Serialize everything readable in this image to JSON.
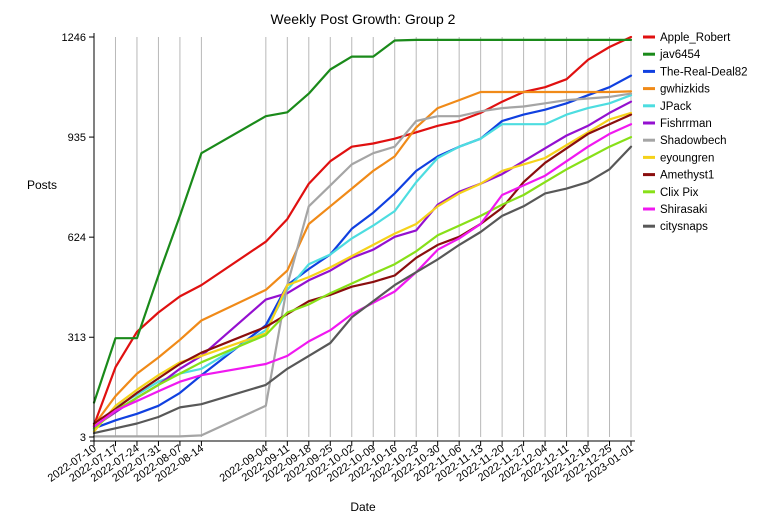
{
  "chart_data": {
    "type": "line",
    "title": "Weekly Post Growth: Group 2",
    "xlabel": "Date",
    "ylabel": "Posts",
    "ylim": [
      3,
      1246
    ],
    "yticks": [
      3,
      313,
      624,
      935,
      1246
    ],
    "grid": "vertical",
    "legend": "right",
    "x": [
      "2022-07-10",
      "2022-07-17",
      "2022-07-24",
      "2022-07-31",
      "2022-08-07",
      "2022-08-14",
      "2022-09-04",
      "2022-09-11",
      "2022-09-18",
      "2022-09-25",
      "2022-10-02",
      "2022-10-09",
      "2022-10-16",
      "2022-10-23",
      "2022-10-30",
      "2022-11-06",
      "2022-11-13",
      "2022-11-20",
      "2022-11-27",
      "2022-12-04",
      "2022-12-11",
      "2022-12-18",
      "2022-12-25",
      "2023-01-01"
    ],
    "series": [
      {
        "name": "Apple_Robert",
        "color": "#e01010",
        "values": [
          40,
          220,
          330,
          390,
          440,
          475,
          610,
          680,
          790,
          860,
          905,
          915,
          930,
          950,
          970,
          985,
          1010,
          1045,
          1075,
          1090,
          1115,
          1175,
          1215,
          1246
        ]
      },
      {
        "name": "jav6454",
        "color": "#1a8a1a",
        "values": [
          110,
          310,
          310,
          505,
          690,
          885,
          1000,
          1012,
          1070,
          1145,
          1185,
          1185,
          1235,
          1237,
          1237,
          1237,
          1237,
          1237,
          1237,
          1237,
          1237,
          1237,
          1237,
          1237
        ]
      },
      {
        "name": "The-Real-Deal82",
        "color": "#1040e0",
        "values": [
          30,
          55,
          75,
          100,
          140,
          195,
          350,
          475,
          525,
          570,
          650,
          700,
          760,
          830,
          875,
          905,
          930,
          985,
          1005,
          1020,
          1040,
          1065,
          1090,
          1126
        ]
      },
      {
        "name": "gwhizkids",
        "color": "#f08a18",
        "values": [
          40,
          130,
          200,
          250,
          305,
          365,
          460,
          520,
          665,
          720,
          775,
          830,
          875,
          965,
          1025,
          1050,
          1075,
          1075,
          1075,
          1075,
          1075,
          1075,
          1075,
          1077
        ]
      },
      {
        "name": "JPack",
        "color": "#4ddde0",
        "values": [
          25,
          95,
          135,
          175,
          200,
          215,
          335,
          460,
          540,
          570,
          620,
          660,
          705,
          795,
          870,
          905,
          930,
          975,
          975,
          975,
          1005,
          1025,
          1040,
          1065
        ]
      },
      {
        "name": "Fishrrman",
        "color": "#9410d0",
        "values": [
          35,
          80,
          125,
          165,
          215,
          255,
          430,
          450,
          490,
          520,
          560,
          585,
          625,
          645,
          725,
          765,
          790,
          820,
          860,
          900,
          940,
          970,
          1010,
          1045
        ]
      },
      {
        "name": "Shadowbech",
        "color": "#a5a5a5",
        "values": [
          5,
          5,
          5,
          5,
          5,
          8,
          100,
          475,
          720,
          785,
          850,
          885,
          905,
          985,
          1000,
          1000,
          1015,
          1025,
          1030,
          1040,
          1050,
          1055,
          1060,
          1070
        ]
      },
      {
        "name": "eyoungren",
        "color": "#f5d21a",
        "values": [
          20,
          100,
          150,
          195,
          235,
          255,
          325,
          475,
          500,
          530,
          565,
          600,
          635,
          665,
          720,
          760,
          790,
          830,
          850,
          870,
          910,
          950,
          990,
          1010
        ]
      },
      {
        "name": "Amethyst1",
        "color": "#8a0e0e",
        "values": [
          45,
          90,
          140,
          185,
          230,
          265,
          345,
          385,
          425,
          445,
          470,
          485,
          505,
          560,
          600,
          625,
          665,
          715,
          795,
          855,
          900,
          945,
          975,
          1005
        ]
      },
      {
        "name": "Clix Pix",
        "color": "#88e018",
        "values": [
          30,
          85,
          125,
          165,
          200,
          235,
          320,
          390,
          415,
          450,
          480,
          510,
          540,
          580,
          630,
          660,
          690,
          725,
          755,
          795,
          835,
          870,
          905,
          935
        ]
      },
      {
        "name": "Shirasaki",
        "color": "#f018f0",
        "values": [
          35,
          85,
          115,
          145,
          175,
          195,
          230,
          255,
          300,
          335,
          385,
          420,
          455,
          515,
          585,
          620,
          665,
          755,
          785,
          815,
          860,
          905,
          945,
          975
        ]
      },
      {
        "name": "citysnaps",
        "color": "#585858",
        "values": [
          15,
          30,
          45,
          65,
          95,
          105,
          165,
          215,
          255,
          295,
          375,
          425,
          475,
          515,
          555,
          600,
          640,
          690,
          720,
          760,
          775,
          795,
          835,
          905
        ]
      }
    ]
  }
}
